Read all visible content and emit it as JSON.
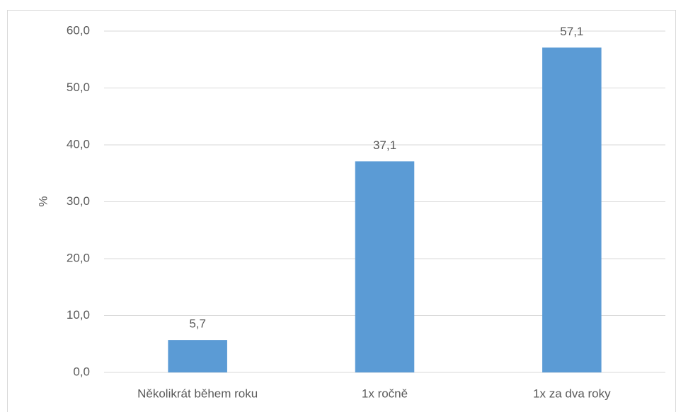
{
  "chart_data": {
    "type": "bar",
    "y_label": "%",
    "categories": [
      "Několikrát během roku",
      "1x ročně",
      "1x za dva roky"
    ],
    "values": [
      5.7,
      37.1,
      57.1
    ],
    "value_labels": [
      "5,7",
      "37,1",
      "57,1"
    ],
    "color": "#5b9bd5",
    "ylim": [
      0,
      60
    ],
    "yticks": [
      {
        "value": 0,
        "label": "0,0"
      },
      {
        "value": 10,
        "label": "10,0"
      },
      {
        "value": 20,
        "label": "20,0"
      },
      {
        "value": 30,
        "label": "30,0"
      },
      {
        "value": 40,
        "label": "40,0"
      },
      {
        "value": 50,
        "label": "50,0"
      },
      {
        "value": 60,
        "label": "60,0"
      }
    ],
    "grid": true
  }
}
